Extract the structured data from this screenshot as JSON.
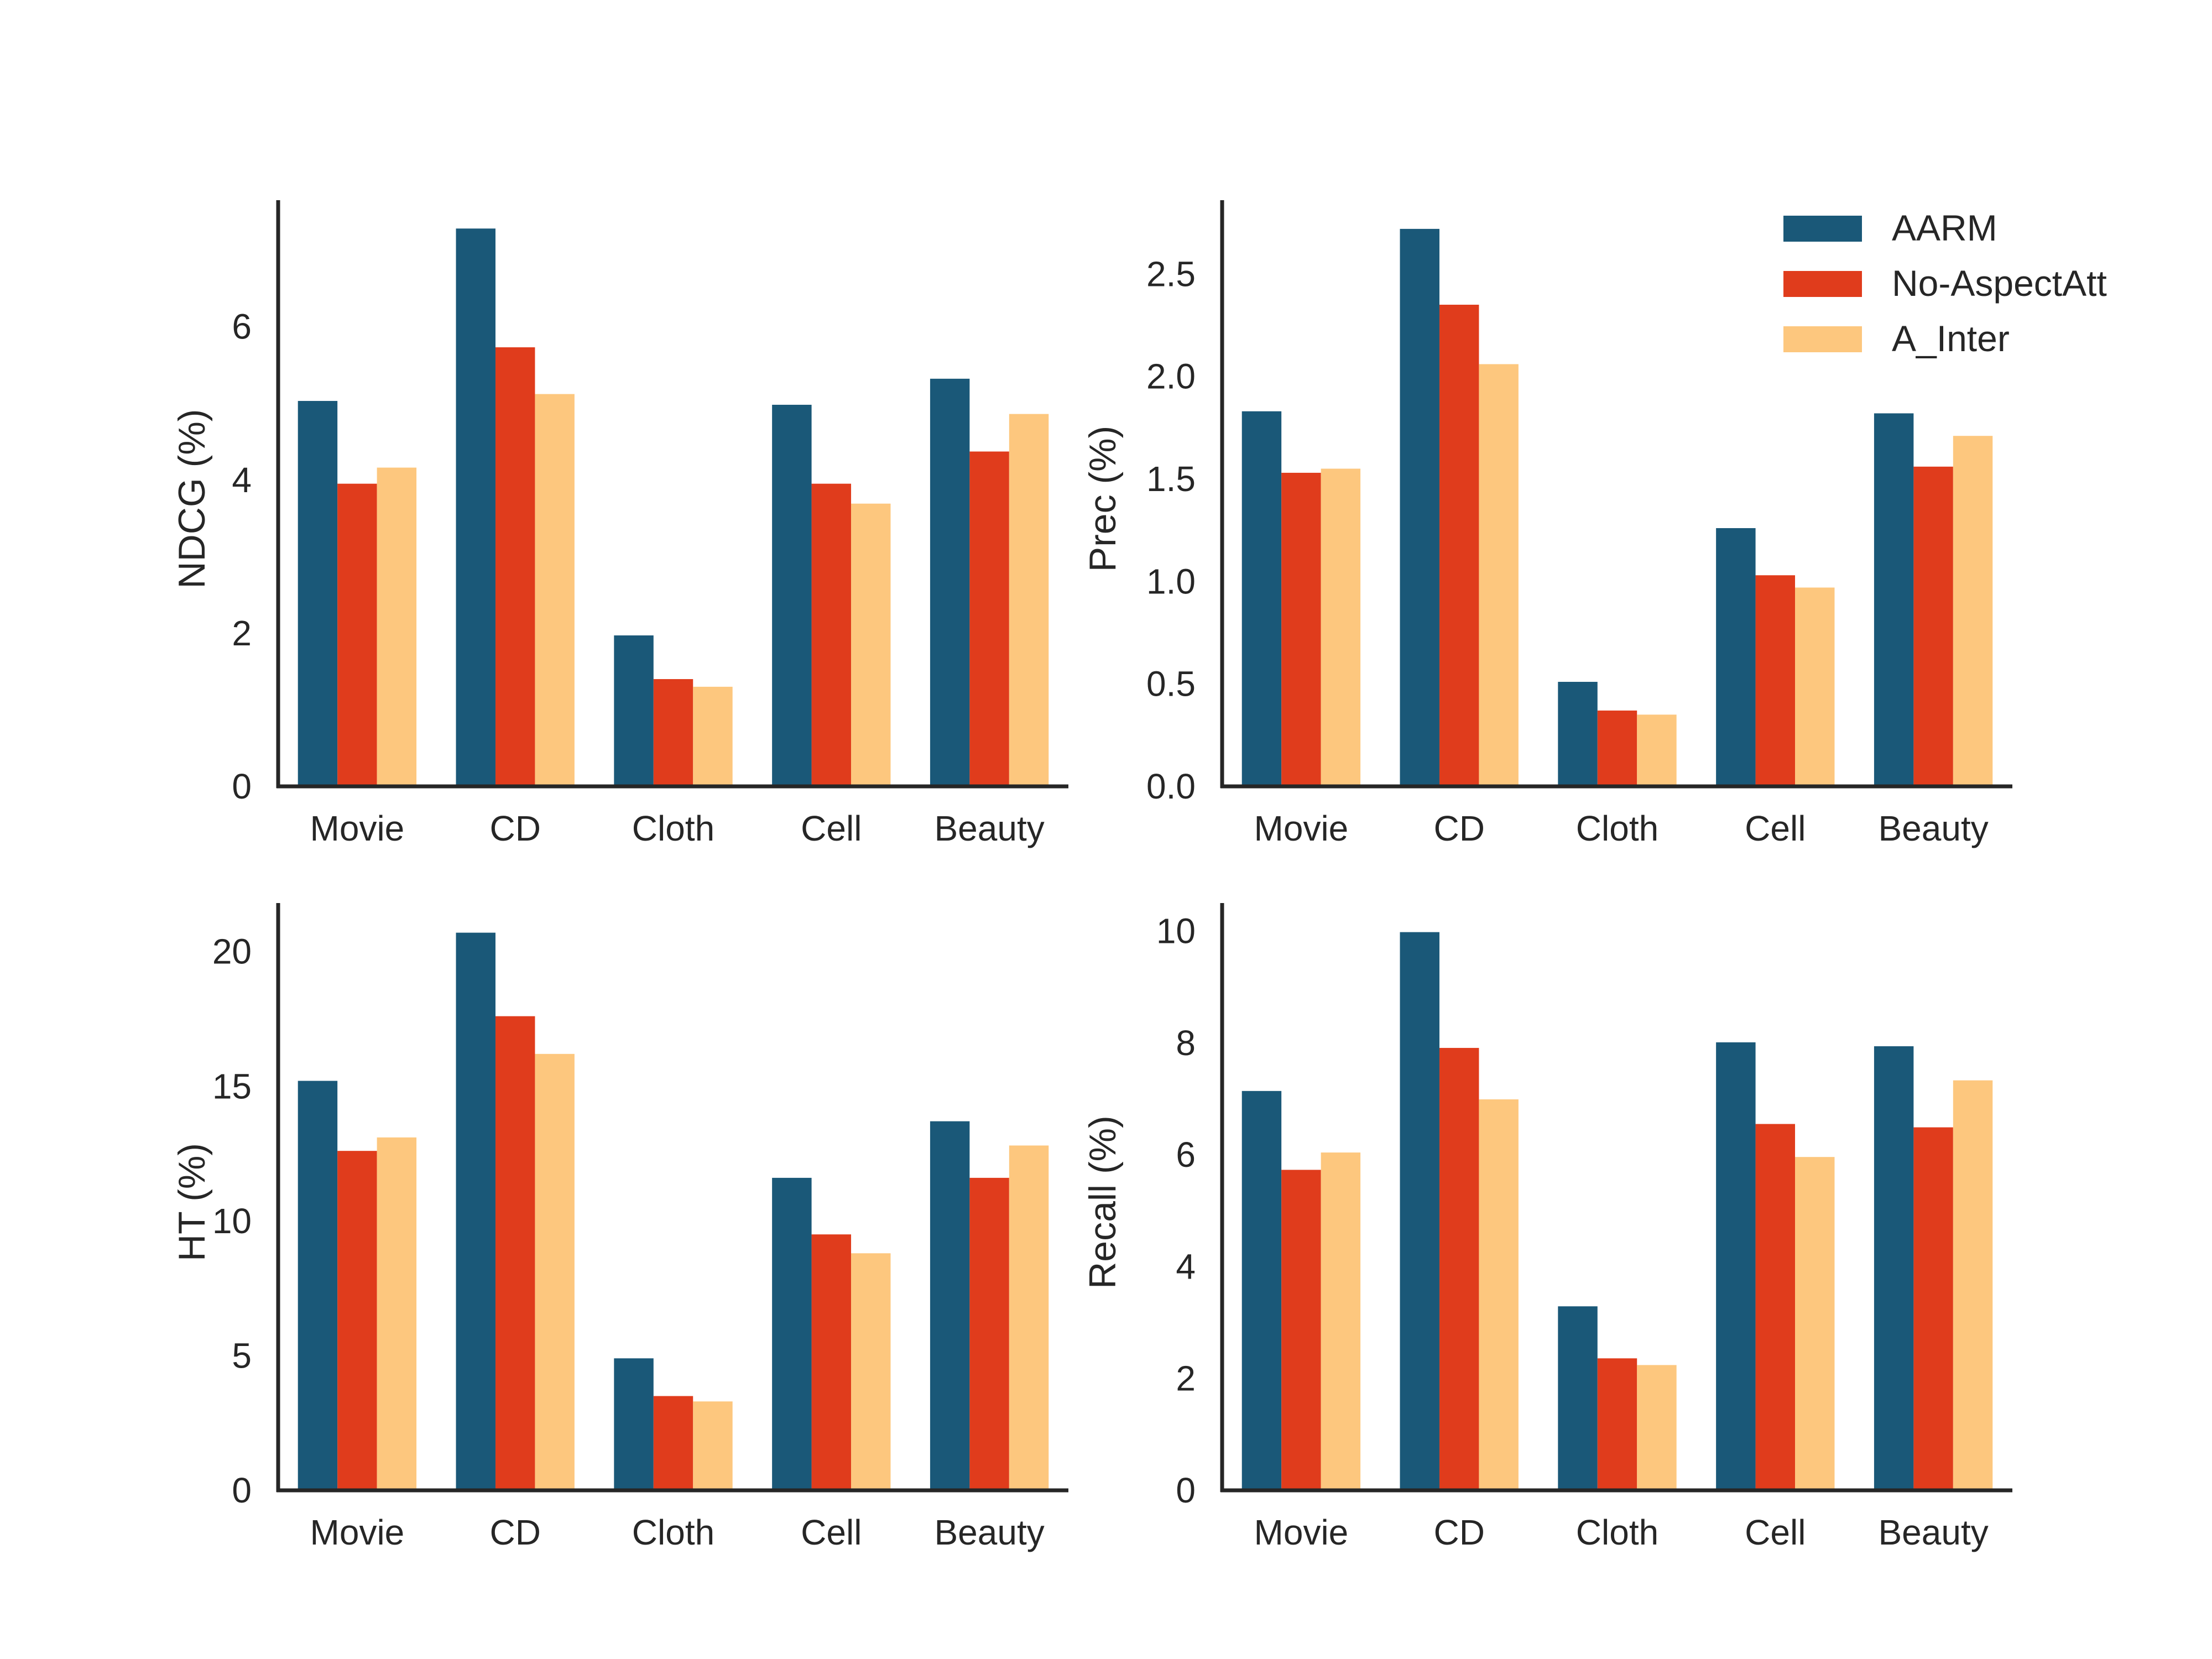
{
  "colors": {
    "AARM": "#1a5878",
    "No-AspectAtt": "#e03c1c",
    "A_Inter": "#fdc77e",
    "axis": "#262626"
  },
  "legend": {
    "placement": "top-right of top-right panel",
    "entries": [
      "AARM",
      "No-AspectAtt",
      "A_Inter"
    ]
  },
  "chart_data": [
    {
      "type": "bar",
      "categories": [
        "Movie",
        "CD",
        "Cloth",
        "Cell",
        "Beauty"
      ],
      "series": [
        {
          "name": "AARM",
          "values": [
            5.03,
            7.28,
            1.97,
            4.98,
            5.32
          ]
        },
        {
          "name": "No-AspectAtt",
          "values": [
            3.95,
            5.73,
            1.4,
            3.95,
            4.37
          ]
        },
        {
          "name": "A_Inter",
          "values": [
            4.16,
            5.12,
            1.3,
            3.69,
            4.86
          ]
        }
      ],
      "ylabel": "NDCG (%)",
      "ylim": [
        0,
        7.65
      ],
      "yticks": [
        "0",
        "2",
        "4",
        "6"
      ],
      "ytick_values": [
        0,
        2,
        4,
        6
      ]
    },
    {
      "type": "bar",
      "categories": [
        "Movie",
        "CD",
        "Cloth",
        "Cell",
        "Beauty"
      ],
      "series": [
        {
          "name": "AARM",
          "values": [
            1.83,
            2.72,
            0.51,
            1.26,
            1.82
          ]
        },
        {
          "name": "No-AspectAtt",
          "values": [
            1.53,
            2.35,
            0.37,
            1.03,
            1.56
          ]
        },
        {
          "name": "A_Inter",
          "values": [
            1.55,
            2.06,
            0.35,
            0.97,
            1.71
          ]
        }
      ],
      "ylabel": "Prec (%)",
      "ylim": [
        0,
        2.86
      ],
      "yticks": [
        "0.0",
        "0.5",
        "1.0",
        "1.5",
        "2.0",
        "2.5"
      ],
      "ytick_values": [
        0,
        0.5,
        1.0,
        1.5,
        2.0,
        2.5
      ]
    },
    {
      "type": "bar",
      "categories": [
        "Movie",
        "CD",
        "Cloth",
        "Cell",
        "Beauty"
      ],
      "series": [
        {
          "name": "AARM",
          "values": [
            15.2,
            20.7,
            4.9,
            11.6,
            13.7
          ]
        },
        {
          "name": "No-AspectAtt",
          "values": [
            12.6,
            17.6,
            3.5,
            9.5,
            11.6
          ]
        },
        {
          "name": "A_Inter",
          "values": [
            13.1,
            16.2,
            3.3,
            8.8,
            12.8
          ]
        }
      ],
      "ylabel": "HT (%)",
      "ylim": [
        0,
        21.8
      ],
      "yticks": [
        "0",
        "5",
        "10",
        "15",
        "20"
      ],
      "ytick_values": [
        0,
        5,
        10,
        15,
        20
      ]
    },
    {
      "type": "bar",
      "categories": [
        "Movie",
        "CD",
        "Cloth",
        "Cell",
        "Beauty"
      ],
      "series": [
        {
          "name": "AARM",
          "values": [
            7.14,
            9.98,
            3.29,
            8.01,
            7.94
          ]
        },
        {
          "name": "No-AspectAtt",
          "values": [
            5.73,
            7.91,
            2.36,
            6.55,
            6.49
          ]
        },
        {
          "name": "A_Inter",
          "values": [
            6.04,
            6.99,
            2.24,
            5.96,
            7.33
          ]
        }
      ],
      "ylabel": "Recall (%)",
      "ylim": [
        0,
        10.5
      ],
      "yticks": [
        "0",
        "2",
        "4",
        "6",
        "8",
        "10"
      ],
      "ytick_values": [
        0,
        2,
        4,
        6,
        8,
        10
      ]
    }
  ]
}
